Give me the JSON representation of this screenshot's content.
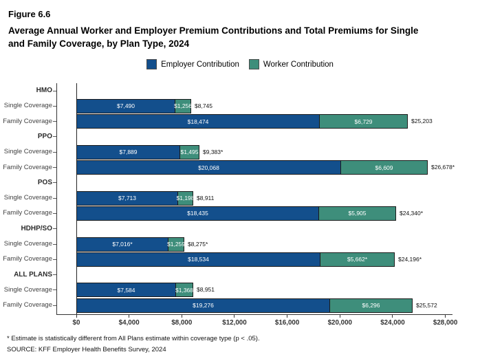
{
  "header": {
    "figure_label": "Figure 6.6",
    "title_line1": "Average Annual Worker and Employer Premium Contributions and Total Premiums for Single",
    "title_line2": "and Family Coverage, by Plan Type, 2024"
  },
  "legend": {
    "employer": "Employer Contribution",
    "worker": "Worker Contribution"
  },
  "chart_data": {
    "type": "bar",
    "orientation": "horizontal-stacked",
    "title": "Average Annual Worker and Employer Premium Contributions and Total Premiums for Single and Family Coverage, by Plan Type, 2024",
    "legend_entries": [
      "Employer Contribution",
      "Worker Contribution"
    ],
    "legend_position": "top-center",
    "colors": {
      "employer": "#134F8C",
      "worker": "#3E8E7B"
    },
    "x_axis": {
      "ticks": [
        0,
        4000,
        8000,
        12000,
        16000,
        20000,
        24000,
        28000
      ],
      "tick_labels": [
        "$0",
        "$4,000",
        "$8,000",
        "$12,000",
        "$16,000",
        "$20,000",
        "$24,000",
        "$28,000"
      ],
      "max": 28000
    },
    "groups": [
      {
        "plan": "HMO",
        "rows": [
          {
            "label": "Single Coverage",
            "employer": 7490,
            "worker": 1256,
            "employer_label": "$7,490",
            "worker_label": "$1,256",
            "total_label": "$8,745"
          },
          {
            "label": "Family Coverage",
            "employer": 18474,
            "worker": 6729,
            "employer_label": "$18,474",
            "worker_label": "$6,729",
            "total_label": "$25,203"
          }
        ]
      },
      {
        "plan": "PPO",
        "rows": [
          {
            "label": "Single Coverage",
            "employer": 7889,
            "worker": 1495,
            "employer_label": "$7,889",
            "worker_label": "$1,495",
            "total_label": "$9,383*"
          },
          {
            "label": "Family Coverage",
            "employer": 20068,
            "worker": 6609,
            "employer_label": "$20,068",
            "worker_label": "$6,609",
            "total_label": "$26,678*"
          }
        ]
      },
      {
        "plan": "POS",
        "rows": [
          {
            "label": "Single Coverage",
            "employer": 7713,
            "worker": 1198,
            "employer_label": "$7,713",
            "worker_label": "$1,198",
            "total_label": "$8,911"
          },
          {
            "label": "Family Coverage",
            "employer": 18435,
            "worker": 5905,
            "employer_label": "$18,435",
            "worker_label": "$5,905",
            "total_label": "$24,340*"
          }
        ]
      },
      {
        "plan": "HDHP/SO",
        "rows": [
          {
            "label": "Single Coverage",
            "employer": 7016,
            "worker": 1259,
            "employer_label": "$7,016*",
            "worker_label": "$1,259",
            "total_label": "$8,275*"
          },
          {
            "label": "Family Coverage",
            "employer": 18534,
            "worker": 5662,
            "employer_label": "$18,534",
            "worker_label": "$5,662*",
            "total_label": "$24,196*"
          }
        ]
      },
      {
        "plan": "ALL PLANS",
        "rows": [
          {
            "label": "Single Coverage",
            "employer": 7584,
            "worker": 1368,
            "employer_label": "$7,584",
            "worker_label": "$1,368",
            "total_label": "$8,951"
          },
          {
            "label": "Family Coverage",
            "employer": 19276,
            "worker": 6296,
            "employer_label": "$19,276",
            "worker_label": "$6,296",
            "total_label": "$25,572"
          }
        ]
      }
    ]
  },
  "footnotes": {
    "note": "* Estimate is statistically different from All Plans estimate within coverage type (p < .05).",
    "source": "SOURCE: KFF Employer Health Benefits Survey, 2024"
  }
}
